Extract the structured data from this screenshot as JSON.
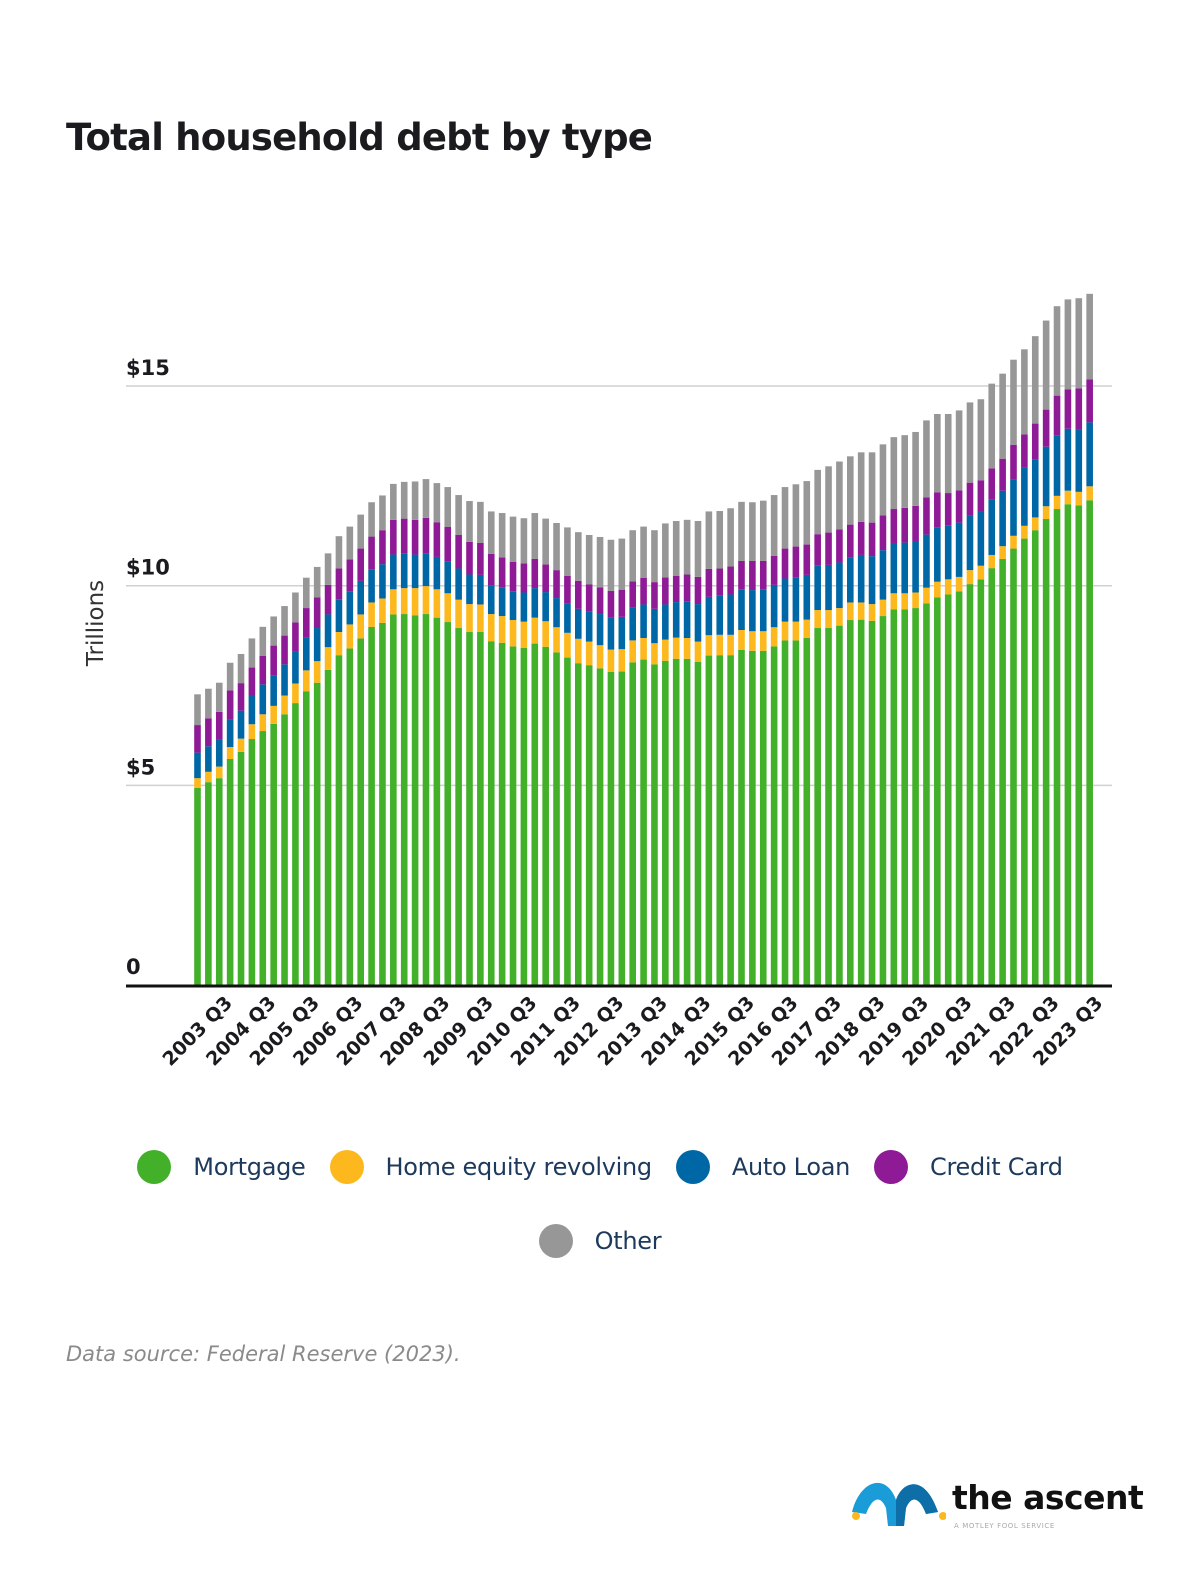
{
  "title": "Total household debt by type",
  "source": "Data source: Federal Reserve (2023).",
  "logo": {
    "name": "the ascent",
    "tagline": "A MOTLEY FOOL SERVICE"
  },
  "chart_data": {
    "type": "bar",
    "stacked": true,
    "title": "Total household debt by type",
    "xlabel": "",
    "ylabel": "Trillions",
    "ylim": [
      0,
      17.5
    ],
    "yticks": [
      0,
      5,
      10,
      15
    ],
    "ytick_labels": [
      "0",
      "$5",
      "$10",
      "$15"
    ],
    "grid": true,
    "legend_position": "bottom",
    "x_tick_labels": [
      "2003 Q3",
      "2004 Q3",
      "2005 Q3",
      "2006 Q3",
      "2007 Q3",
      "2008 Q3",
      "2009 Q3",
      "2010 Q3",
      "2011 Q3",
      "2012 Q3",
      "2013 Q3",
      "2014 Q3",
      "2015 Q3",
      "2016 Q3",
      "2017 Q3",
      "2018 Q3",
      "2019 Q3",
      "2020 Q3",
      "2021 Q3",
      "2022 Q3",
      "2023 Q3"
    ],
    "categories": [
      "2003 Q1",
      "2003 Q2",
      "2003 Q3",
      "2003 Q4",
      "2004 Q1",
      "2004 Q2",
      "2004 Q3",
      "2004 Q4",
      "2005 Q1",
      "2005 Q2",
      "2005 Q3",
      "2005 Q4",
      "2006 Q1",
      "2006 Q2",
      "2006 Q3",
      "2006 Q4",
      "2007 Q1",
      "2007 Q2",
      "2007 Q3",
      "2007 Q4",
      "2008 Q1",
      "2008 Q2",
      "2008 Q3",
      "2008 Q4",
      "2009 Q1",
      "2009 Q2",
      "2009 Q3",
      "2009 Q4",
      "2010 Q1",
      "2010 Q2",
      "2010 Q3",
      "2010 Q4",
      "2011 Q1",
      "2011 Q2",
      "2011 Q3",
      "2011 Q4",
      "2012 Q1",
      "2012 Q2",
      "2012 Q3",
      "2012 Q4",
      "2013 Q1",
      "2013 Q2",
      "2013 Q3",
      "2013 Q4",
      "2014 Q1",
      "2014 Q2",
      "2014 Q3",
      "2014 Q4",
      "2015 Q1",
      "2015 Q2",
      "2015 Q3",
      "2015 Q4",
      "2016 Q1",
      "2016 Q2",
      "2016 Q3",
      "2016 Q4",
      "2017 Q1",
      "2017 Q2",
      "2017 Q3",
      "2017 Q4",
      "2018 Q1",
      "2018 Q2",
      "2018 Q3",
      "2018 Q4",
      "2019 Q1",
      "2019 Q2",
      "2019 Q3",
      "2019 Q4",
      "2020 Q1",
      "2020 Q2",
      "2020 Q3",
      "2020 Q4",
      "2021 Q1",
      "2021 Q2",
      "2021 Q3",
      "2021 Q4",
      "2022 Q1",
      "2022 Q2",
      "2022 Q3",
      "2022 Q4",
      "2023 Q1",
      "2023 Q2",
      "2023 Q3"
    ],
    "series": [
      {
        "name": "Mortgage",
        "color": "#43b02a",
        "values": [
          4.94,
          5.08,
          5.18,
          5.66,
          5.84,
          6.16,
          6.36,
          6.54,
          6.78,
          7.06,
          7.35,
          7.57,
          7.89,
          8.26,
          8.43,
          8.68,
          8.97,
          9.07,
          9.28,
          9.29,
          9.26,
          9.29,
          9.2,
          9.09,
          8.94,
          8.84,
          8.84,
          8.61,
          8.57,
          8.48,
          8.44,
          8.55,
          8.47,
          8.33,
          8.2,
          8.06,
          8.01,
          7.93,
          7.84,
          7.85,
          8.08,
          8.15,
          8.03,
          8.12,
          8.17,
          8.17,
          8.09,
          8.25,
          8.26,
          8.26,
          8.39,
          8.37,
          8.37,
          8.48,
          8.63,
          8.63,
          8.69,
          8.94,
          8.94,
          9.0,
          9.14,
          9.15,
          9.12,
          9.24,
          9.41,
          9.41,
          9.44,
          9.56,
          9.71,
          9.78,
          9.86,
          10.04,
          10.16,
          10.44,
          10.67,
          10.93,
          11.18,
          11.39,
          11.67,
          11.92,
          12.04,
          12.01,
          12.14
        ]
      },
      {
        "name": "Home equity revolving",
        "color": "#fdb81e",
        "values": [
          0.24,
          0.26,
          0.29,
          0.3,
          0.33,
          0.37,
          0.42,
          0.45,
          0.47,
          0.49,
          0.53,
          0.54,
          0.57,
          0.58,
          0.6,
          0.6,
          0.61,
          0.61,
          0.63,
          0.65,
          0.68,
          0.7,
          0.71,
          0.72,
          0.71,
          0.7,
          0.69,
          0.68,
          0.67,
          0.66,
          0.66,
          0.65,
          0.64,
          0.63,
          0.62,
          0.61,
          0.59,
          0.58,
          0.56,
          0.56,
          0.55,
          0.54,
          0.53,
          0.53,
          0.53,
          0.52,
          0.51,
          0.51,
          0.51,
          0.51,
          0.5,
          0.49,
          0.49,
          0.48,
          0.47,
          0.47,
          0.46,
          0.45,
          0.45,
          0.44,
          0.44,
          0.43,
          0.42,
          0.41,
          0.4,
          0.4,
          0.39,
          0.39,
          0.39,
          0.38,
          0.36,
          0.35,
          0.34,
          0.33,
          0.32,
          0.32,
          0.32,
          0.32,
          0.32,
          0.33,
          0.34,
          0.34,
          0.35
        ]
      },
      {
        "name": "Auto Loan",
        "color": "#0067a6",
        "values": [
          0.64,
          0.64,
          0.68,
          0.7,
          0.7,
          0.72,
          0.75,
          0.77,
          0.78,
          0.8,
          0.82,
          0.83,
          0.82,
          0.82,
          0.83,
          0.84,
          0.83,
          0.86,
          0.87,
          0.86,
          0.84,
          0.82,
          0.81,
          0.79,
          0.78,
          0.74,
          0.74,
          0.72,
          0.71,
          0.72,
          0.73,
          0.74,
          0.73,
          0.73,
          0.73,
          0.75,
          0.75,
          0.78,
          0.8,
          0.81,
          0.82,
          0.84,
          0.86,
          0.88,
          0.89,
          0.92,
          0.94,
          0.96,
          0.98,
          1.01,
          1.02,
          1.03,
          1.05,
          1.06,
          1.08,
          1.1,
          1.12,
          1.12,
          1.13,
          1.14,
          1.13,
          1.19,
          1.2,
          1.24,
          1.26,
          1.27,
          1.29,
          1.33,
          1.35,
          1.34,
          1.36,
          1.37,
          1.37,
          1.38,
          1.39,
          1.42,
          1.45,
          1.46,
          1.49,
          1.52,
          1.55,
          1.56,
          1.6
        ]
      },
      {
        "name": "Credit Card",
        "color": "#8f1a96",
        "values": [
          0.69,
          0.7,
          0.69,
          0.72,
          0.69,
          0.7,
          0.71,
          0.74,
          0.72,
          0.73,
          0.74,
          0.77,
          0.74,
          0.77,
          0.8,
          0.81,
          0.82,
          0.85,
          0.87,
          0.88,
          0.87,
          0.89,
          0.87,
          0.87,
          0.84,
          0.82,
          0.8,
          0.79,
          0.76,
          0.74,
          0.73,
          0.73,
          0.69,
          0.7,
          0.7,
          0.7,
          0.68,
          0.67,
          0.67,
          0.68,
          0.66,
          0.67,
          0.67,
          0.68,
          0.66,
          0.67,
          0.68,
          0.7,
          0.68,
          0.7,
          0.71,
          0.73,
          0.71,
          0.73,
          0.75,
          0.78,
          0.76,
          0.78,
          0.81,
          0.83,
          0.82,
          0.83,
          0.84,
          0.87,
          0.85,
          0.87,
          0.88,
          0.93,
          0.89,
          0.82,
          0.81,
          0.82,
          0.77,
          0.79,
          0.8,
          0.86,
          0.84,
          0.89,
          0.93,
          0.99,
          0.99,
          1.03,
          1.08
        ]
      },
      {
        "name": "Other",
        "color": "#979797",
        "values": [
          0.77,
          0.74,
          0.73,
          0.69,
          0.73,
          0.73,
          0.73,
          0.73,
          0.74,
          0.75,
          0.76,
          0.76,
          0.79,
          0.81,
          0.82,
          0.85,
          0.86,
          0.87,
          0.9,
          0.92,
          0.96,
          0.97,
          0.98,
          1.0,
          1.0,
          1.02,
          1.03,
          1.06,
          1.11,
          1.13,
          1.13,
          1.15,
          1.15,
          1.18,
          1.21,
          1.22,
          1.24,
          1.26,
          1.28,
          1.28,
          1.28,
          1.28,
          1.3,
          1.35,
          1.37,
          1.37,
          1.4,
          1.44,
          1.44,
          1.46,
          1.48,
          1.47,
          1.51,
          1.52,
          1.54,
          1.56,
          1.59,
          1.61,
          1.66,
          1.7,
          1.71,
          1.74,
          1.76,
          1.78,
          1.8,
          1.82,
          1.85,
          1.93,
          1.96,
          1.98,
          2.0,
          2.01,
          2.03,
          2.12,
          2.13,
          2.13,
          2.13,
          2.19,
          2.23,
          2.24,
          2.25,
          2.26,
          2.14
        ]
      }
    ]
  }
}
